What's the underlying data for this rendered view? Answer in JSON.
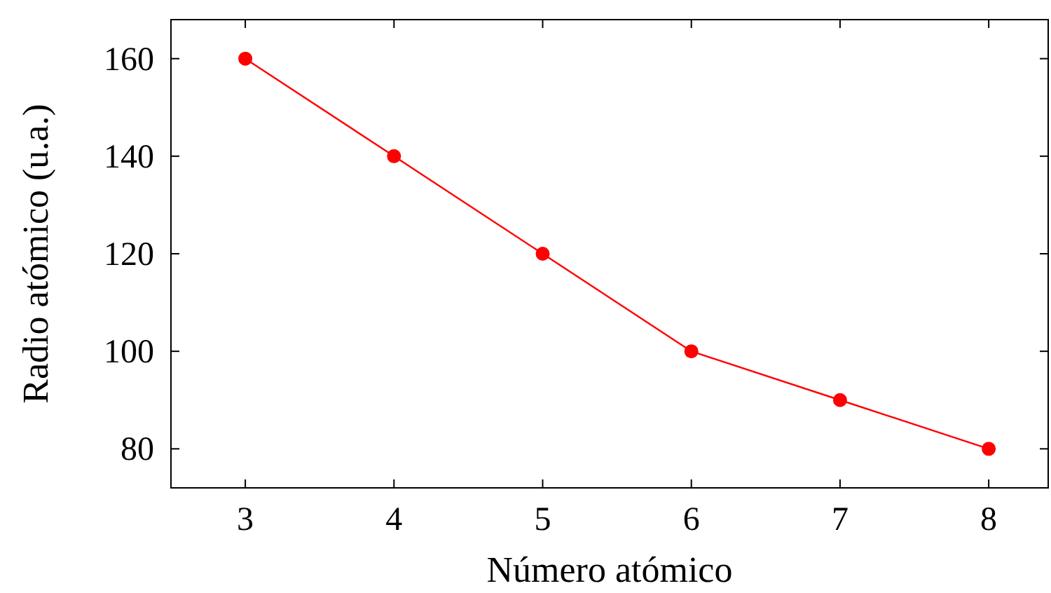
{
  "chart_data": {
    "type": "line",
    "xlabel": "Número atómico",
    "ylabel": "Radio atómico (u.a.)",
    "x": [
      3,
      4,
      5,
      6,
      7,
      8
    ],
    "series": [
      {
        "color": "#ff0000",
        "values": [
          160,
          140,
          120,
          100,
          90,
          80
        ]
      }
    ],
    "xlim": [
      2.5,
      8.4
    ],
    "ylim": [
      72,
      168
    ],
    "xticks": [
      3,
      4,
      5,
      6,
      7,
      8
    ],
    "yticks": [
      80,
      100,
      120,
      140,
      160
    ],
    "marker": "circle",
    "line_style": "solid"
  }
}
